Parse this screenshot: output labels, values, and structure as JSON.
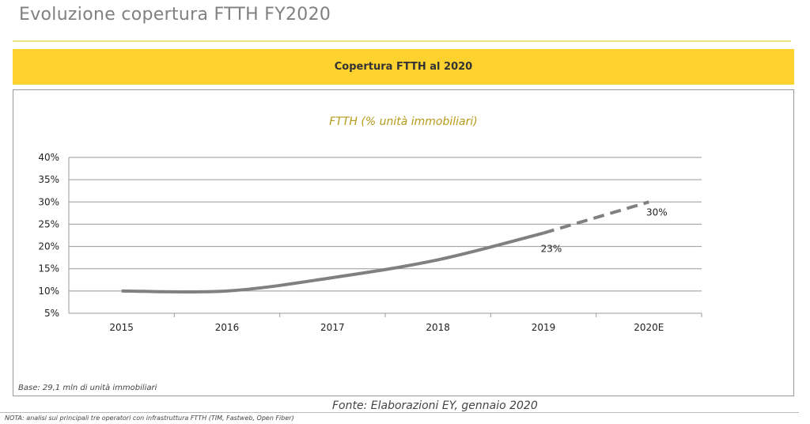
{
  "page": {
    "title": "Evoluzione copertura FTTH FY2020",
    "banner": "Copertura FTTH al 2020",
    "base_note": "Base: 29,1 mln di unità immobiliari",
    "source": "Fonte: Elaborazioni EY, gennaio 2020",
    "nota": "NOTA: analisi sui principali tre operatori con infrastruttura FTTH (TIM, Fastweb, Open Fiber)"
  },
  "chart_data": {
    "type": "line",
    "title": "FTTH (% unità immobiliari)",
    "categories": [
      "2015",
      "2016",
      "2017",
      "2018",
      "2019",
      "2020E"
    ],
    "series": [
      {
        "name": "FTTH",
        "values": [
          10,
          10,
          13,
          17,
          23,
          30
        ],
        "dashed_from_index": 4
      }
    ],
    "data_labels": [
      {
        "index": 4,
        "text": "23%"
      },
      {
        "index": 5,
        "text": "30%"
      }
    ],
    "ylim": [
      5,
      40
    ],
    "yticks": [
      "5%",
      "10%",
      "15%",
      "20%",
      "25%",
      "30%",
      "35%",
      "40%"
    ],
    "ytick_values": [
      5,
      10,
      15,
      20,
      25,
      30,
      35,
      40
    ],
    "grid": true,
    "line_color": "#808080"
  }
}
